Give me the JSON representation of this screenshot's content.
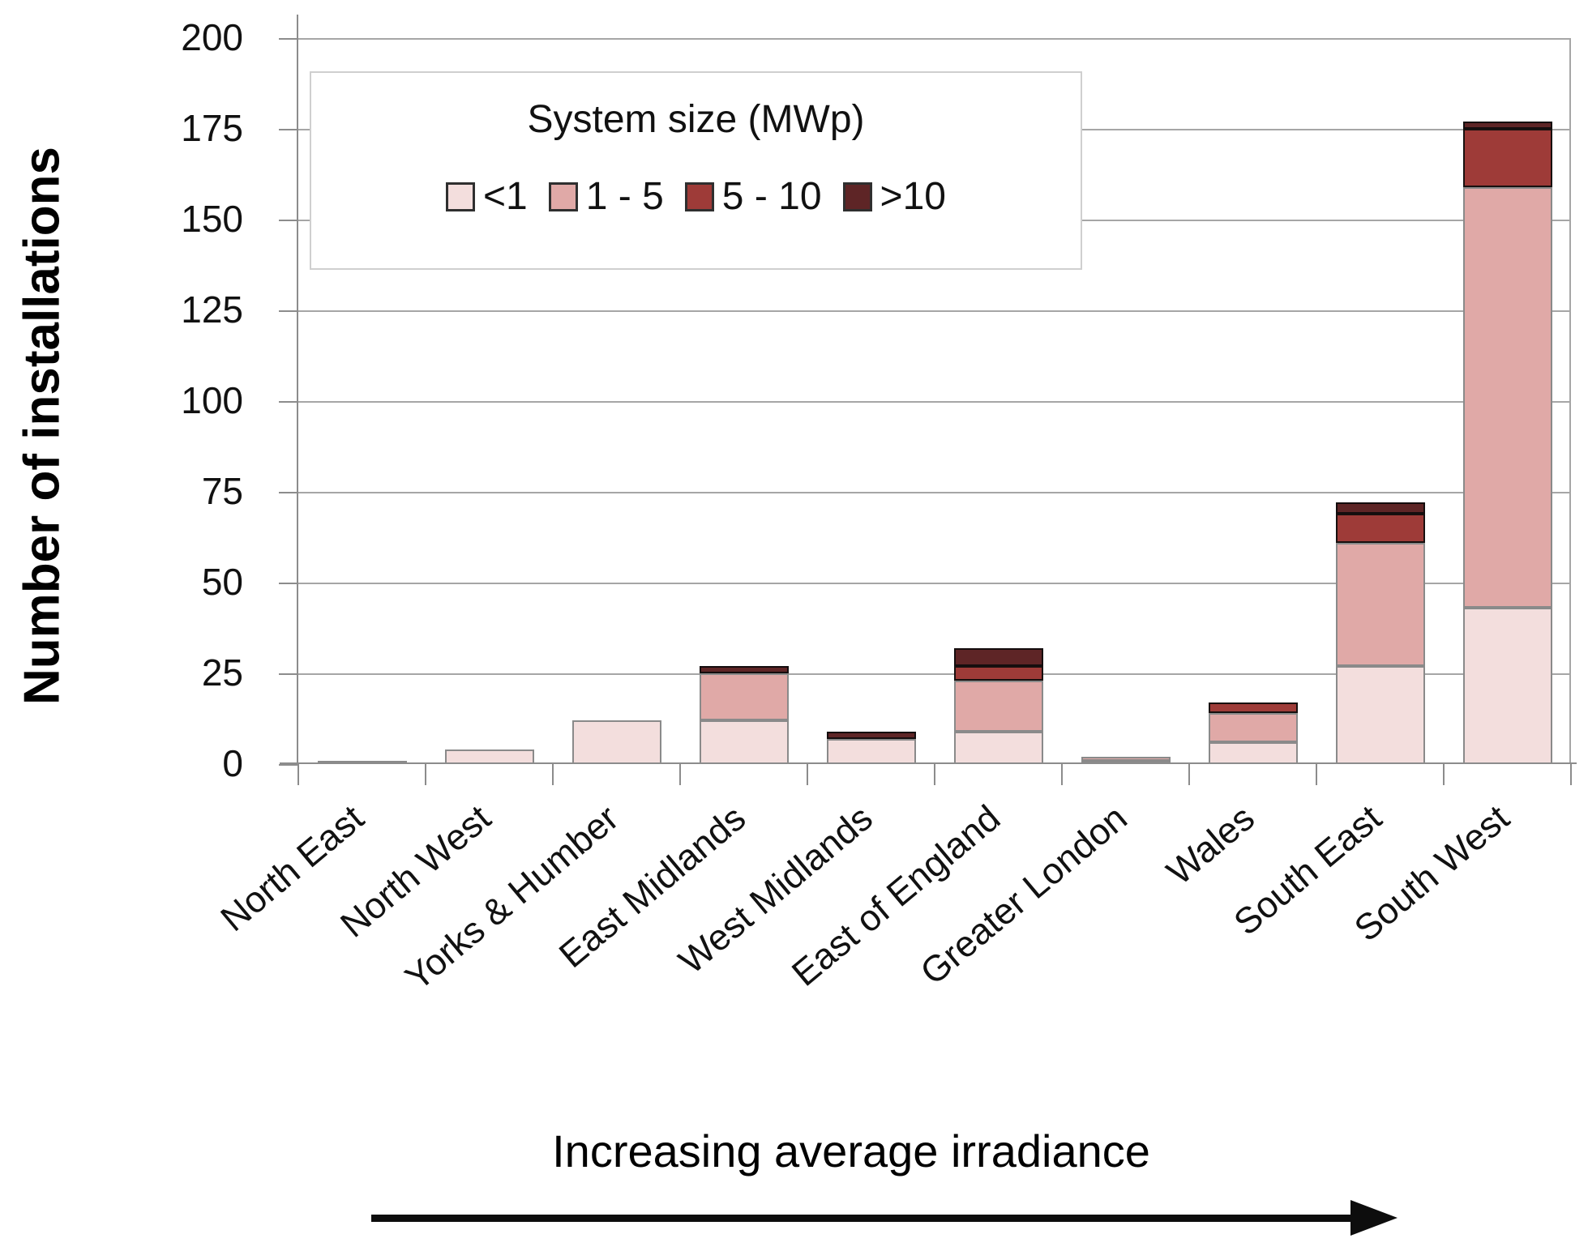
{
  "chart_data": {
    "type": "bar",
    "subtype": "stacked-vertical",
    "title": "",
    "ylabel": "Number of installations",
    "xlabel": "",
    "ylim": [
      0,
      200
    ],
    "yticks": [
      0,
      25,
      50,
      75,
      100,
      125,
      150,
      175,
      200
    ],
    "grid": "horizontal",
    "legend_position": "inside-top-left",
    "legend_title": "System size (MWp)",
    "categories": [
      "North East",
      "North West",
      "Yorks & Humber",
      "East Midlands",
      "West Midlands",
      "East of England",
      "Greater London",
      "Wales",
      "South East",
      "South West"
    ],
    "series": [
      {
        "name": "<1",
        "color": "#f3dedd",
        "border_color": "#8a8a8a",
        "values": [
          1,
          4,
          12,
          12,
          7,
          9,
          1,
          6,
          27,
          43
        ]
      },
      {
        "name": "1 - 5",
        "color": "#e0a9a7",
        "border_color": "#8a8a8a",
        "values": [
          0,
          0,
          0,
          13,
          0,
          14,
          1,
          8,
          34,
          116
        ]
      },
      {
        "name": "5 - 10",
        "color": "#9e3b38",
        "border_color": "#17100f",
        "values": [
          0,
          0,
          0,
          0,
          0,
          4,
          0,
          3,
          8,
          16
        ]
      },
      {
        "name": ">10",
        "color": "#5e2526",
        "border_color": "#140d0e",
        "values": [
          0,
          0,
          0,
          2,
          2,
          5,
          0,
          0,
          3,
          2
        ]
      }
    ],
    "totals": [
      1,
      4,
      12,
      27,
      9,
      32,
      2,
      17,
      72,
      177
    ],
    "annotation": "Increasing average irradiance",
    "annotation_arrow": "right"
  },
  "colors": {
    "gridline": "#a6a6a6",
    "axis": "#8c8c8c",
    "text": "#111111",
    "legend_border": "#cfcfcf",
    "arrow": "#0d0d0d"
  }
}
